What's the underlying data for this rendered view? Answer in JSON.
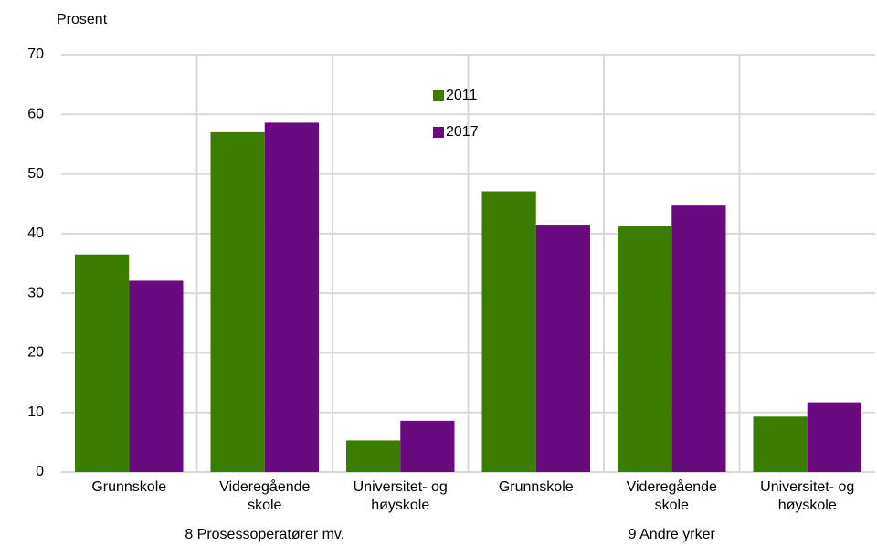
{
  "chart_data": {
    "type": "bar",
    "y_label": "Prosent",
    "categories": [
      "Grunnskole",
      "Videregående skole",
      "Universitet- og høyskole",
      "Grunnskole",
      "Videregående skole",
      "Universitet- og høyskole"
    ],
    "groups": [
      "8 Prosessoperatører mv.",
      "9 Andre yrker"
    ],
    "series": [
      {
        "name": "2011",
        "color": "#3a7d00",
        "values": [
          36.5,
          57,
          5.3,
          47.1,
          41.2,
          9.3
        ]
      },
      {
        "name": "2017",
        "color": "#6a0a80",
        "values": [
          32.1,
          58.6,
          8.6,
          41.5,
          44.7,
          11.7
        ]
      }
    ],
    "ylim": [
      0,
      70
    ],
    "yticks": [
      0,
      10,
      20,
      30,
      40,
      50,
      60,
      70
    ],
    "grid": true,
    "legend": "top-center"
  }
}
